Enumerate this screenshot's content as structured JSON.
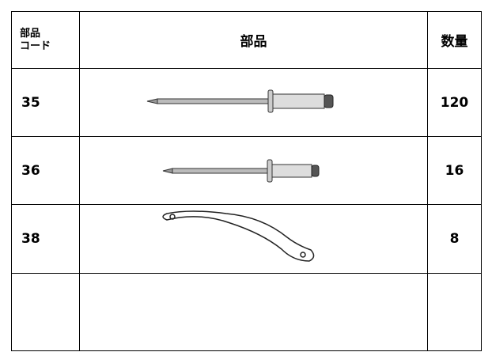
{
  "table": {
    "header": {
      "code": [
        "部品",
        "コード"
      ],
      "part": "部品",
      "quantity": "数量"
    },
    "rows": [
      {
        "code": "35",
        "quantity": "120"
      },
      {
        "code": "36",
        "quantity": "16"
      },
      {
        "code": "38",
        "quantity": "8"
      }
    ]
  }
}
